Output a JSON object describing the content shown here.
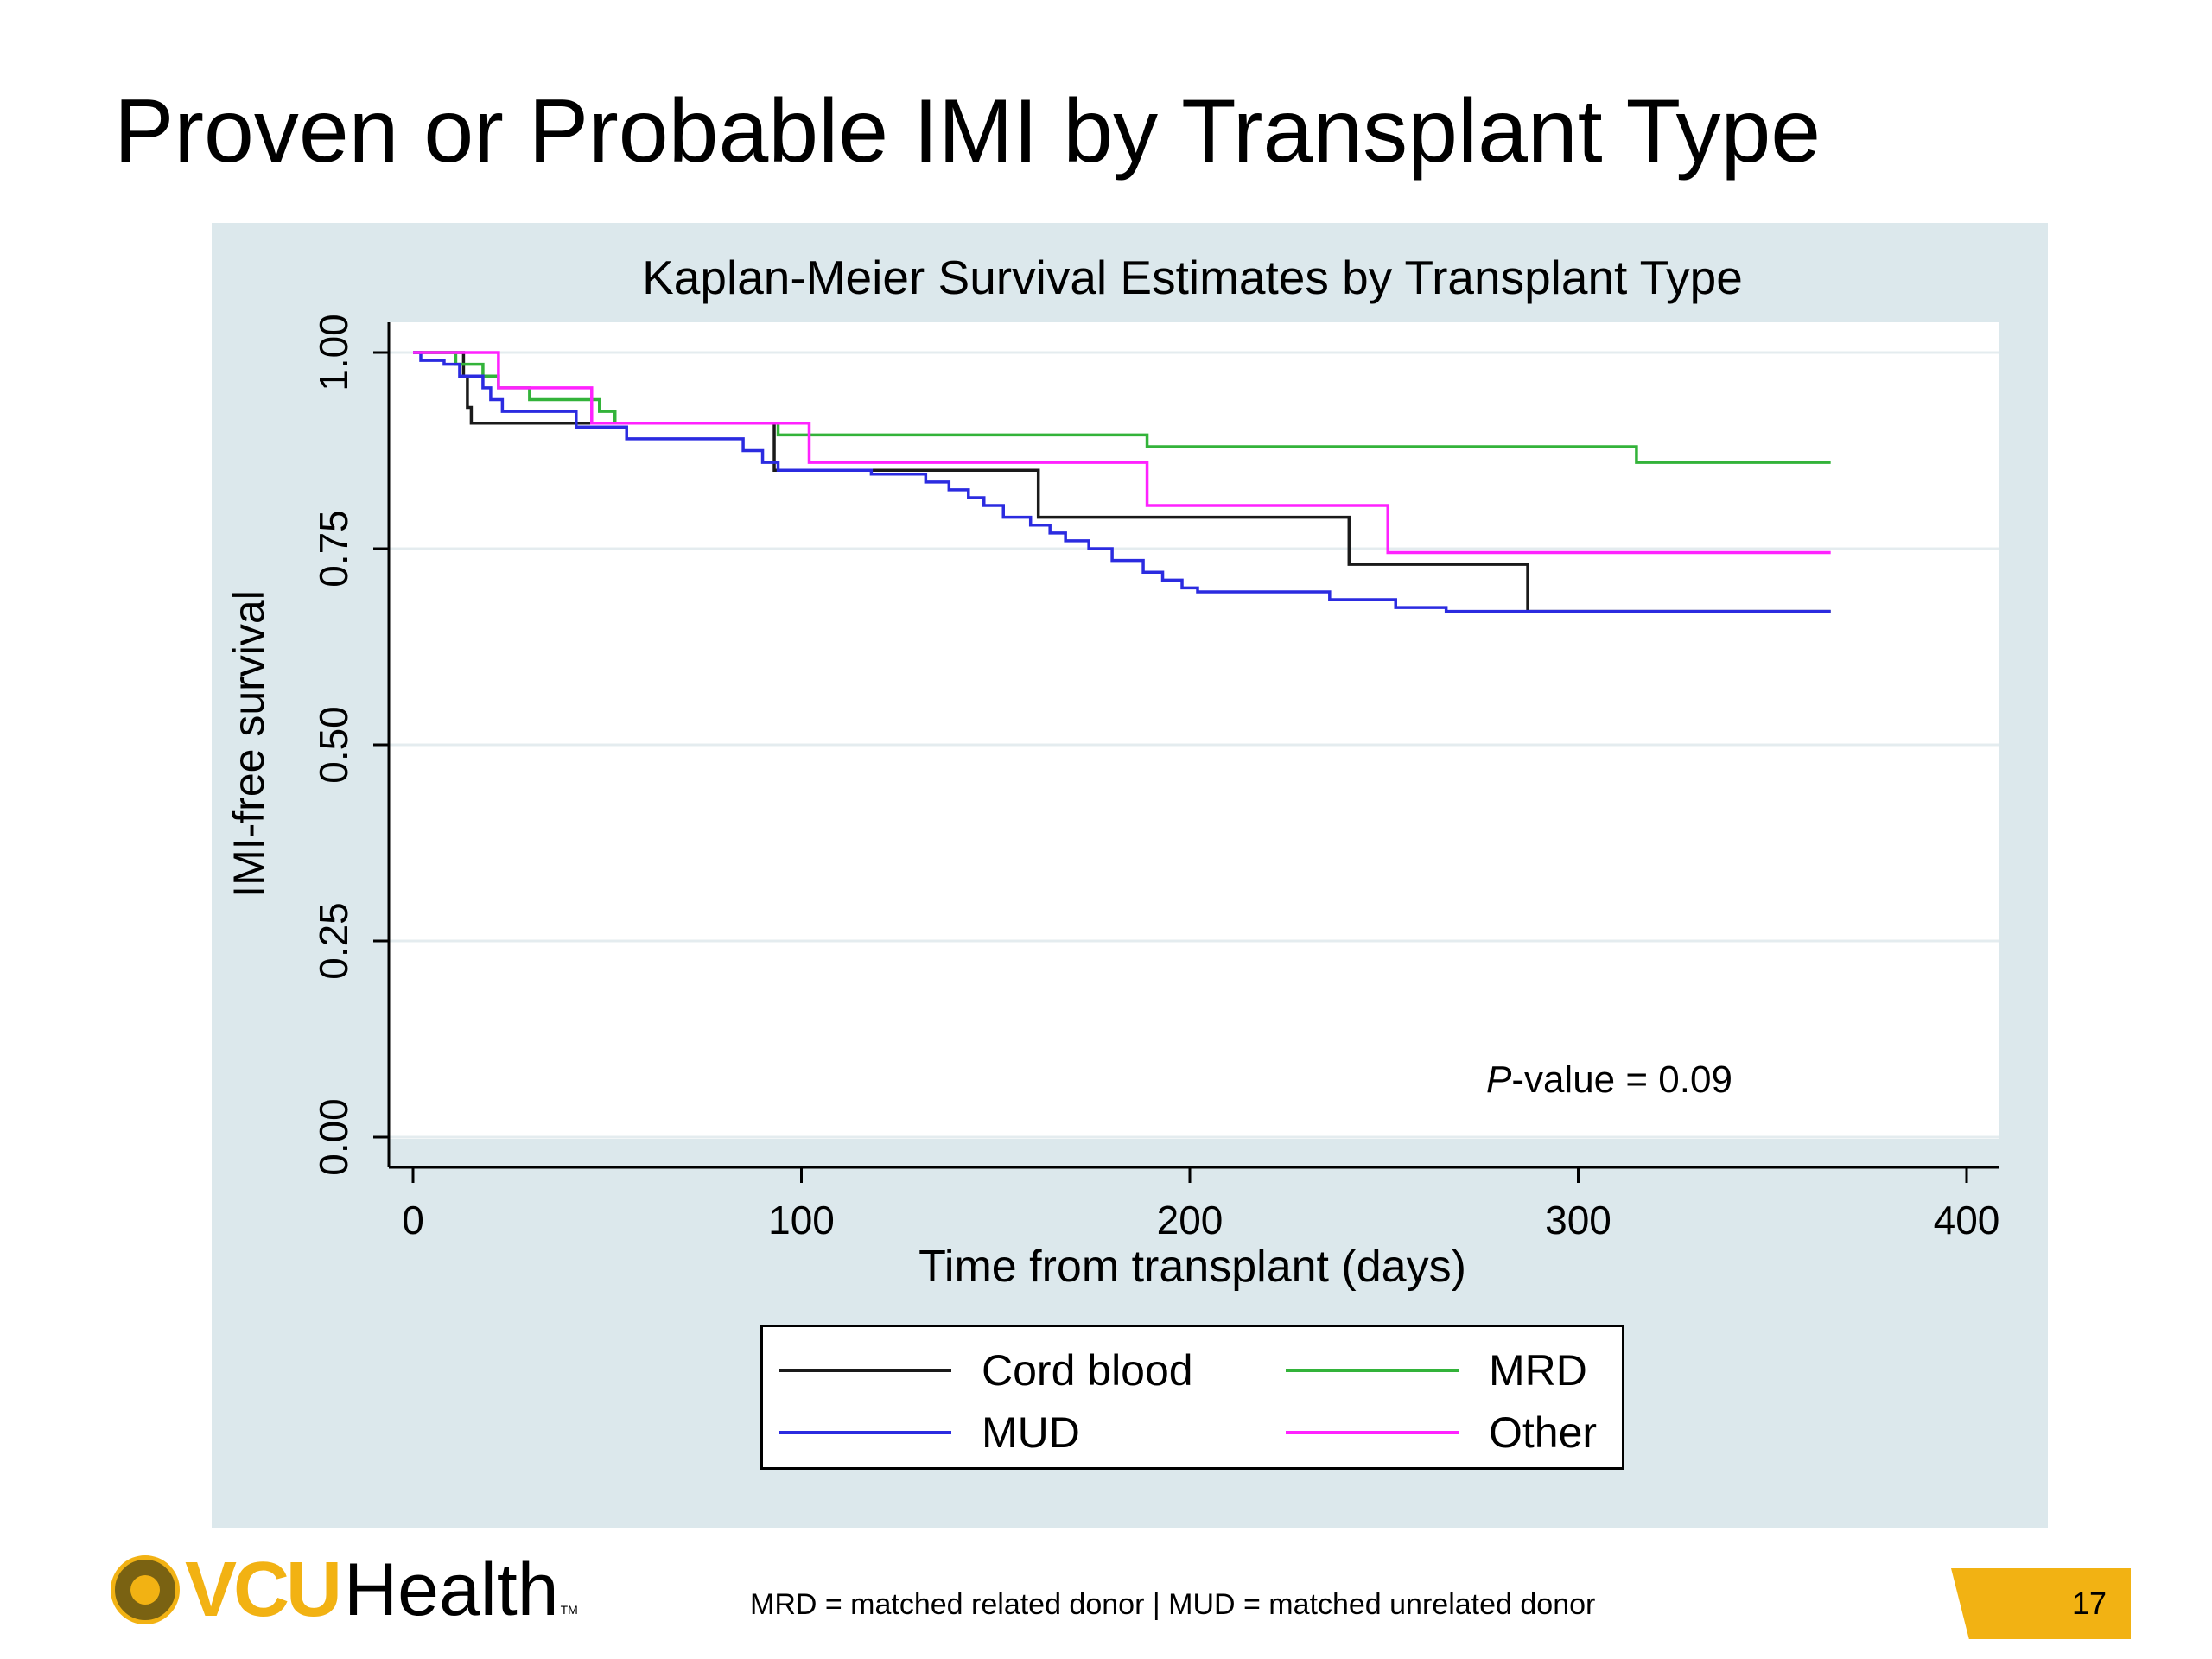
{
  "slide": {
    "title": "Proven or Probable IMI by Transplant Type",
    "footnote": "MRD = matched related donor | MUD = matched unrelated donor",
    "page_number": "17",
    "logo": {
      "brand_text": "VCU",
      "suffix_text": "Health",
      "trademark": "TM"
    }
  },
  "colors": {
    "panel_bg": "#dce8ec",
    "plot_bg": "#ffffff",
    "brand_gold": "#f2b213"
  },
  "chart_data": {
    "type": "line",
    "step": true,
    "title": "Kaplan-Meier Survival Estimates by Transplant Type",
    "xlabel": "Time from transplant (days)",
    "ylabel": "IMI-free survival",
    "xlim": [
      0,
      400
    ],
    "ylim": [
      0,
      1
    ],
    "xticks": [
      0,
      100,
      200,
      300,
      400
    ],
    "xtick_labels": [
      "0",
      "100",
      "200",
      "300",
      "400"
    ],
    "yticks": [
      0,
      0.25,
      0.5,
      0.75,
      1
    ],
    "ytick_labels": [
      "0.00",
      "0.25",
      "0.50",
      "0.75",
      "1.00"
    ],
    "grid": "horizontal",
    "annotation": {
      "prefix": "P",
      "text": "-value = 0.09",
      "x": 308,
      "y": 0.075
    },
    "legend": {
      "position": "bottom",
      "columns": 2
    },
    "series": [
      {
        "name": "Cord blood",
        "color": "#1a1a1a",
        "x": [
          0,
          13,
          14,
          15,
          93,
          161,
          241,
          287,
          365
        ],
        "y": [
          1.0,
          0.97,
          0.93,
          0.91,
          0.85,
          0.79,
          0.73,
          0.67,
          0.67
        ]
      },
      {
        "name": "MRD",
        "color": "#33b33a",
        "x": [
          0,
          11,
          18,
          22,
          30,
          48,
          52,
          94,
          189,
          315,
          365
        ],
        "y": [
          1.0,
          0.985,
          0.97,
          0.955,
          0.94,
          0.925,
          0.91,
          0.895,
          0.88,
          0.86,
          0.86
        ]
      },
      {
        "name": "MUD",
        "color": "#2b2be0",
        "x": [
          0,
          2,
          8,
          12,
          18,
          20,
          23,
          42,
          55,
          85,
          90,
          94,
          118,
          132,
          138,
          143,
          147,
          152,
          159,
          164,
          168,
          174,
          180,
          188,
          193,
          198,
          202,
          236,
          253,
          266,
          365
        ],
        "y": [
          1.0,
          0.99,
          0.985,
          0.97,
          0.955,
          0.94,
          0.925,
          0.905,
          0.89,
          0.875,
          0.86,
          0.85,
          0.845,
          0.835,
          0.825,
          0.815,
          0.805,
          0.79,
          0.78,
          0.77,
          0.76,
          0.75,
          0.735,
          0.72,
          0.71,
          0.7,
          0.695,
          0.685,
          0.675,
          0.67,
          0.67
        ]
      },
      {
        "name": "Other",
        "color": "#ff22ff",
        "x": [
          0,
          22,
          46,
          102,
          189,
          251,
          365
        ],
        "y": [
          1.0,
          0.955,
          0.91,
          0.86,
          0.805,
          0.745,
          0.745
        ]
      }
    ]
  }
}
